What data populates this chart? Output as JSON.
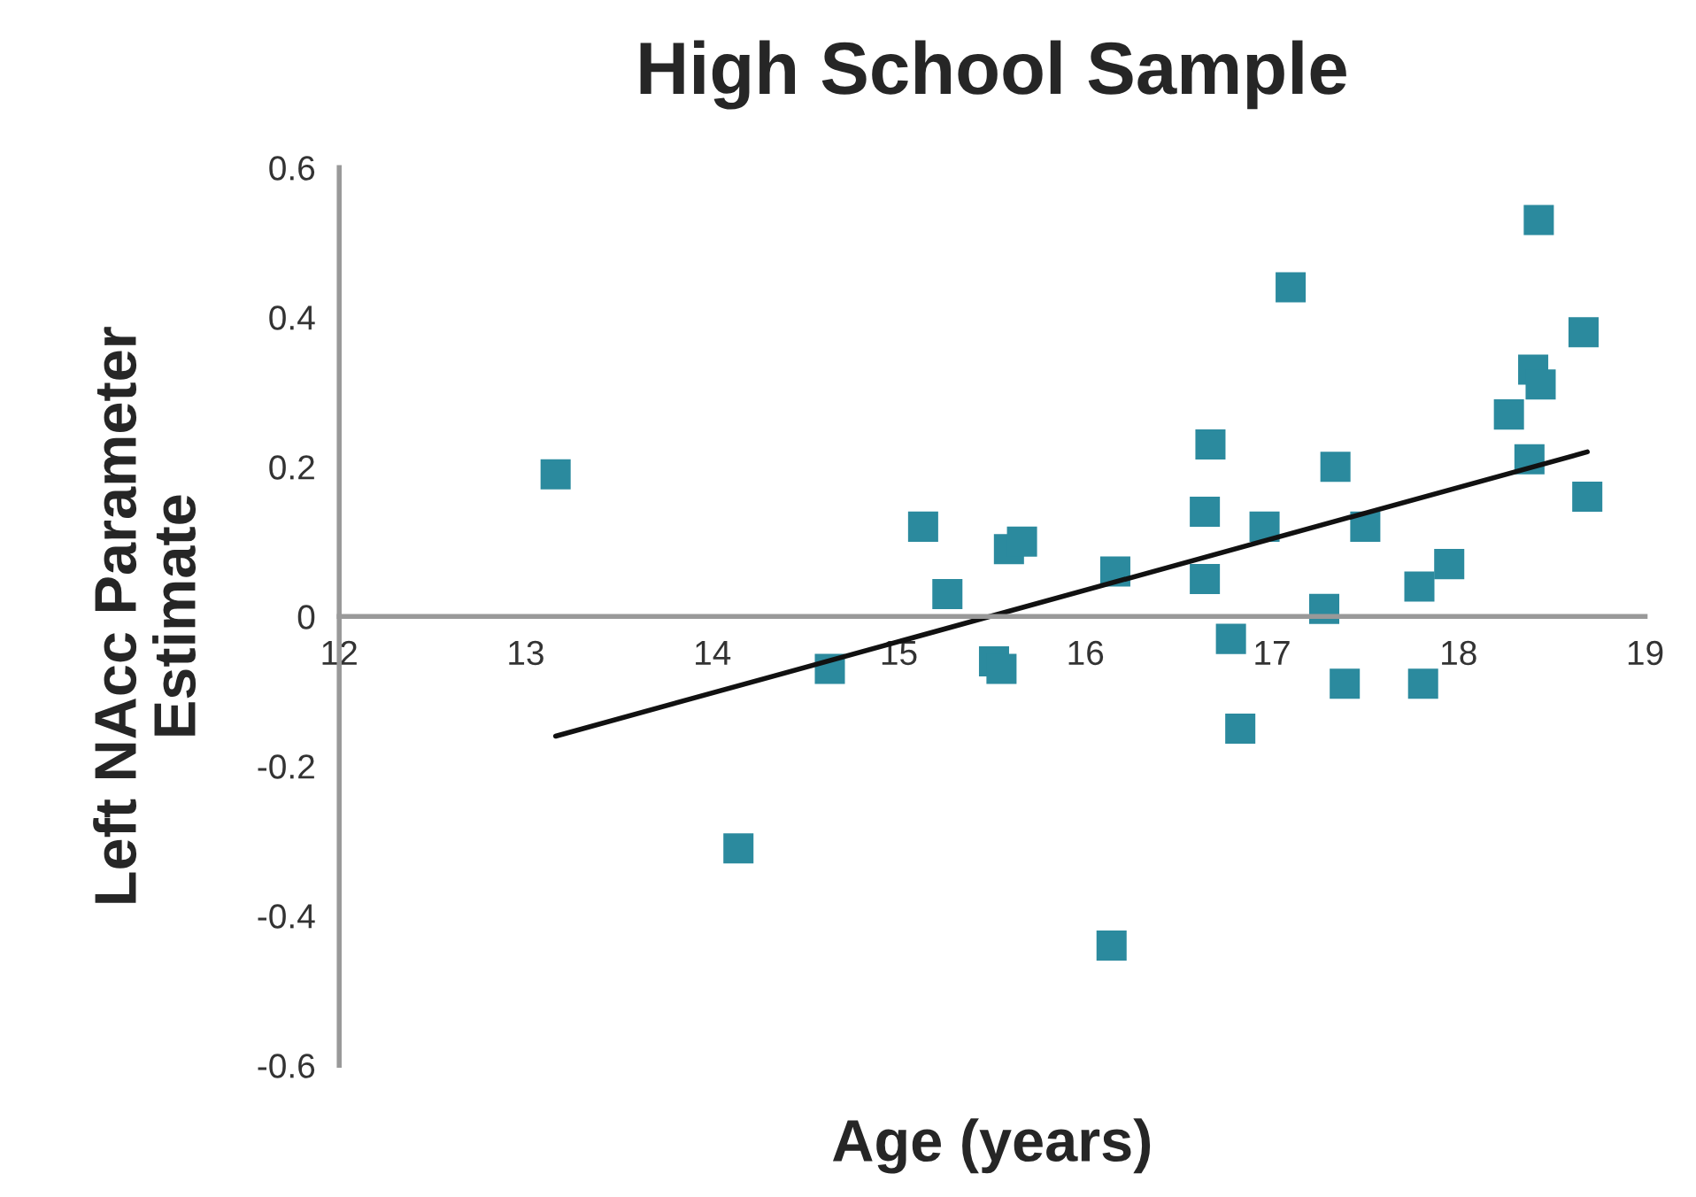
{
  "chart_data": {
    "type": "scatter",
    "title": "High School Sample",
    "xlabel": "Age (years)",
    "ylabel": "Left NAcc Parameter\nEstimate",
    "xlim": [
      12,
      19
    ],
    "xticks": [
      12,
      13,
      14,
      15,
      16,
      17,
      18,
      19
    ],
    "ylim": [
      -0.6,
      0.6
    ],
    "yticks": [
      {
        "value": -0.6,
        "label": "-0.6"
      },
      {
        "value": -0.4,
        "label": "-0.4"
      },
      {
        "value": -0.2,
        "label": "-0.2"
      },
      0,
      0.2,
      0.4,
      0.6
    ],
    "grid": false,
    "legend": false,
    "marker": "square",
    "series": [
      {
        "color": "#2b8a9e",
        "x": [
          13.16,
          14.14,
          14.63,
          15.13,
          15.26,
          15.51,
          15.55,
          15.59,
          15.66,
          16.16,
          16.14,
          16.67,
          16.64,
          16.64,
          16.78,
          16.83,
          16.96,
          17.1,
          17.28,
          17.34,
          17.39,
          17.5,
          17.79,
          17.81,
          17.95,
          18.27,
          18.38,
          18.4,
          18.44,
          18.43,
          18.67,
          18.69
        ],
        "values": [
          0.19,
          -0.31,
          -0.07,
          0.12,
          0.03,
          -0.06,
          -0.07,
          0.09,
          0.1,
          0.06,
          -0.44,
          0.23,
          0.14,
          0.05,
          -0.03,
          -0.15,
          0.12,
          0.44,
          0.01,
          0.2,
          -0.09,
          0.12,
          0.04,
          -0.09,
          0.07,
          0.27,
          0.21,
          0.33,
          0.31,
          0.53,
          0.38,
          0.16
        ]
      },
      {
        "type": "line",
        "color": "#111111",
        "x": [
          13.16,
          18.69
        ],
        "values": [
          -0.16,
          0.22
        ],
        "marker": "none",
        "line_style": "solid"
      }
    ]
  }
}
